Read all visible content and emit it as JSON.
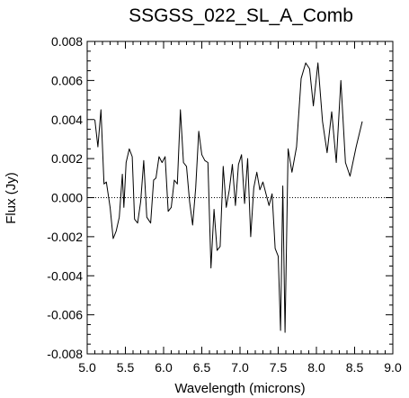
{
  "chart_data": {
    "type": "line",
    "title": "SSGSS_022_SL_A_Comb",
    "xlabel": "Wavelength (microns)",
    "ylabel": "Flux (Jy)",
    "xlim": [
      5.0,
      9.0
    ],
    "ylim": [
      -0.008,
      0.008
    ],
    "xticks": [
      "5.0",
      "5.5",
      "6.0",
      "6.5",
      "7.0",
      "7.5",
      "8.0",
      "8.5",
      "9.0"
    ],
    "yticks": [
      "-0.008",
      "-0.006",
      "-0.004",
      "-0.002",
      "0.000",
      "0.002",
      "0.004",
      "0.006",
      "0.008"
    ],
    "reference_line": {
      "y": 0.0,
      "style": "dotted"
    },
    "series": [
      {
        "x": [
          5.1,
          5.14,
          5.18,
          5.22,
          5.25,
          5.3,
          5.34,
          5.38,
          5.42,
          5.46,
          5.48,
          5.51,
          5.55,
          5.59,
          5.62,
          5.66,
          5.7,
          5.74,
          5.78,
          5.83,
          5.87,
          5.9,
          5.94,
          5.98,
          6.02,
          6.06,
          6.1,
          6.14,
          6.18,
          6.22,
          6.26,
          6.3,
          6.34,
          6.38,
          6.42,
          6.46,
          6.5,
          6.54,
          6.58,
          6.62,
          6.66,
          6.7,
          6.74,
          6.78,
          6.82,
          6.86,
          6.9,
          6.94,
          6.98,
          7.02,
          7.06,
          7.1,
          7.14,
          7.18,
          7.22,
          7.26,
          7.3,
          7.34,
          7.38,
          7.42,
          7.46,
          7.5,
          7.53,
          7.56,
          7.59,
          7.63,
          7.68,
          7.74,
          7.8,
          7.86,
          7.91,
          7.96,
          8.02,
          8.08,
          8.14,
          8.2,
          8.26,
          8.32,
          8.38,
          8.44,
          8.52,
          8.6
        ],
        "y": [
          0.004,
          0.0026,
          0.0045,
          0.0007,
          0.0008,
          -0.0005,
          -0.0021,
          -0.0017,
          -0.001,
          0.0012,
          -0.0005,
          0.0018,
          0.0025,
          0.0021,
          -0.0011,
          -0.0013,
          -0.0002,
          0.0019,
          -0.001,
          -0.0013,
          0.0009,
          0.001,
          0.0021,
          0.0018,
          0.0021,
          -0.0007,
          -0.0005,
          0.0009,
          0.0007,
          0.0045,
          0.0018,
          0.0016,
          -0.0002,
          -0.0014,
          0.0005,
          0.0034,
          0.0022,
          0.0019,
          0.0018,
          -0.0036,
          -0.0006,
          -0.0027,
          -0.0025,
          0.0016,
          -0.0005,
          0.0004,
          0.0017,
          -0.0004,
          0.0017,
          0.0022,
          -0.0003,
          0.002,
          -0.002,
          0.0005,
          0.0013,
          0.0004,
          0.0008,
          0.0002,
          -0.0004,
          0.0002,
          -0.0026,
          -0.003,
          -0.0068,
          0.0006,
          -0.0069,
          0.0025,
          0.0013,
          0.0026,
          0.0061,
          0.0069,
          0.0066,
          0.0047,
          0.0069,
          0.0039,
          0.0023,
          0.0044,
          0.0018,
          0.006,
          0.0018,
          0.0011,
          0.0026,
          0.0039
        ]
      }
    ]
  }
}
